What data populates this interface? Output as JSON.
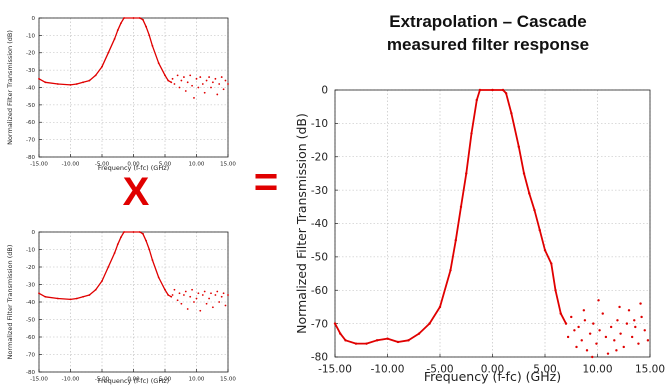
{
  "title_line1": "Extrapolation – Cascade",
  "title_line2": "measured filter response",
  "operator_multiply": "X",
  "operator_equals": "=",
  "colors": {
    "trace": "#e00000",
    "operator": "#e00000",
    "grid": "#b8b8b8"
  },
  "chart_data": [
    {
      "id": "top-left-input",
      "type": "scatter",
      "xlabel": "Frequency (f-fc) (GHz)",
      "ylabel": "Normalized Filter Transmission (dB)",
      "xlim": [
        -15,
        15
      ],
      "ylim": [
        -80,
        0
      ],
      "xticks": [
        "-15.00",
        "-10.00",
        "-5.00",
        "0.00",
        "5.00",
        "10.00",
        "15.00"
      ],
      "yticks": [
        "0",
        "-10",
        "-20",
        "-30",
        "-40",
        "-50",
        "-60",
        "-70",
        "-80"
      ],
      "grid": true,
      "series": [
        {
          "response_points": [
            [
              -15,
              -35
            ],
            [
              -14,
              -37
            ],
            [
              -12,
              -38
            ],
            [
              -10,
              -38.5
            ],
            [
              -9,
              -38
            ],
            [
              -8,
              -37
            ],
            [
              -7,
              -36
            ],
            [
              -6,
              -33
            ],
            [
              -5,
              -28
            ],
            [
              -4,
              -20
            ],
            [
              -3,
              -12
            ],
            [
              -2.5,
              -7
            ],
            [
              -2,
              -3
            ],
            [
              -1.5,
              0
            ],
            [
              0,
              0
            ],
            [
              1,
              0
            ],
            [
              1.5,
              -1
            ],
            [
              2,
              -5
            ],
            [
              2.5,
              -10
            ],
            [
              3,
              -16
            ],
            [
              4,
              -26
            ],
            [
              5,
              -33
            ],
            [
              5.5,
              -36
            ],
            [
              6,
              -37
            ]
          ],
          "noise_floor_points": [
            [
              6.2,
              -35
            ],
            [
              6.5,
              -38
            ],
            [
              7,
              -33
            ],
            [
              7.3,
              -40
            ],
            [
              7.6,
              -36
            ],
            [
              8,
              -34
            ],
            [
              8.3,
              -42
            ],
            [
              8.6,
              -37
            ],
            [
              9,
              -33
            ],
            [
              9.3,
              -39
            ],
            [
              9.6,
              -46
            ],
            [
              10,
              -35
            ],
            [
              10.3,
              -40
            ],
            [
              10.6,
              -34
            ],
            [
              11,
              -38
            ],
            [
              11.3,
              -43
            ],
            [
              11.6,
              -36
            ],
            [
              12,
              -34
            ],
            [
              12.3,
              -40
            ],
            [
              12.6,
              -37
            ],
            [
              13,
              -35
            ],
            [
              13.3,
              -44
            ],
            [
              13.6,
              -38
            ],
            [
              14,
              -34
            ],
            [
              14.3,
              -41
            ],
            [
              14.6,
              -36
            ],
            [
              15,
              -38
            ]
          ]
        }
      ]
    },
    {
      "id": "bottom-left-input",
      "type": "scatter",
      "xlabel": "Frequency (f-fc) (GHz)",
      "ylabel": "Normalized Filter Transmission (dB)",
      "xlim": [
        -15,
        15
      ],
      "ylim": [
        -80,
        0
      ],
      "xticks": [
        "-15.00",
        "-10.00",
        "-5.00",
        "0.00",
        "5.00",
        "10.00",
        "15.00"
      ],
      "yticks": [
        "0",
        "-10",
        "-20",
        "-30",
        "-40",
        "-50",
        "-60",
        "-70",
        "-80"
      ],
      "grid": true,
      "series": [
        {
          "response_points": [
            [
              -15,
              -35
            ],
            [
              -14,
              -37
            ],
            [
              -12,
              -38
            ],
            [
              -10,
              -38.5
            ],
            [
              -9,
              -38
            ],
            [
              -8,
              -37
            ],
            [
              -7,
              -36
            ],
            [
              -6,
              -33
            ],
            [
              -5,
              -28
            ],
            [
              -4,
              -20
            ],
            [
              -3,
              -12
            ],
            [
              -2.5,
              -7
            ],
            [
              -2,
              -3
            ],
            [
              -1.5,
              0
            ],
            [
              0,
              0
            ],
            [
              1,
              0
            ],
            [
              1.5,
              -1
            ],
            [
              2,
              -5
            ],
            [
              2.5,
              -10
            ],
            [
              3,
              -16
            ],
            [
              4,
              -26
            ],
            [
              5,
              -33
            ],
            [
              5.5,
              -36
            ],
            [
              6,
              -37
            ]
          ],
          "noise_floor_points": [
            [
              6.2,
              -36
            ],
            [
              6.5,
              -33
            ],
            [
              7,
              -39
            ],
            [
              7.3,
              -35
            ],
            [
              7.6,
              -41
            ],
            [
              8,
              -36
            ],
            [
              8.3,
              -34
            ],
            [
              8.6,
              -44
            ],
            [
              9,
              -37
            ],
            [
              9.3,
              -33
            ],
            [
              9.6,
              -40
            ],
            [
              10,
              -38
            ],
            [
              10.3,
              -35
            ],
            [
              10.6,
              -45
            ],
            [
              11,
              -36
            ],
            [
              11.3,
              -34
            ],
            [
              11.6,
              -41
            ],
            [
              12,
              -38
            ],
            [
              12.3,
              -35
            ],
            [
              12.6,
              -43
            ],
            [
              13,
              -36
            ],
            [
              13.3,
              -34
            ],
            [
              13.6,
              -40
            ],
            [
              14,
              -37
            ],
            [
              14.3,
              -35
            ],
            [
              14.6,
              -42
            ],
            [
              15,
              -36
            ]
          ]
        }
      ]
    },
    {
      "id": "main-cascade",
      "type": "scatter",
      "xlabel": "Frequency (f-fc) (GHz)",
      "ylabel": "Normalized Filter Transmission (dB)",
      "xlim": [
        -15,
        15
      ],
      "ylim": [
        -80,
        0
      ],
      "xticks": [
        "-15.00",
        "-10.00",
        "-5.00",
        "0.00",
        "5.00",
        "10.00",
        "15.00"
      ],
      "yticks": [
        "0",
        "-10",
        "-20",
        "-30",
        "-40",
        "-50",
        "-60",
        "-70",
        "-80"
      ],
      "grid": true,
      "series": [
        {
          "response_points": [
            [
              -15,
              -70
            ],
            [
              -14.5,
              -73
            ],
            [
              -14,
              -75
            ],
            [
              -13,
              -76
            ],
            [
              -12,
              -76
            ],
            [
              -11,
              -75
            ],
            [
              -10,
              -74.5
            ],
            [
              -9,
              -75.5
            ],
            [
              -8,
              -75
            ],
            [
              -7,
              -73
            ],
            [
              -6,
              -70
            ],
            [
              -5,
              -65
            ],
            [
              -4,
              -54
            ],
            [
              -3.5,
              -45
            ],
            [
              -3,
              -35
            ],
            [
              -2.5,
              -25
            ],
            [
              -2,
              -13
            ],
            [
              -1.5,
              -3
            ],
            [
              -1.2,
              0
            ],
            [
              0,
              0
            ],
            [
              1,
              0
            ],
            [
              1.3,
              -1
            ],
            [
              1.8,
              -7
            ],
            [
              2.5,
              -17
            ],
            [
              3,
              -25
            ],
            [
              3.5,
              -31
            ],
            [
              4,
              -36
            ],
            [
              4.5,
              -42
            ],
            [
              5,
              -48
            ],
            [
              5.6,
              -52
            ],
            [
              6,
              -60
            ],
            [
              6.5,
              -67
            ],
            [
              7,
              -70
            ]
          ],
          "noise_floor_points": [
            [
              7.2,
              -74
            ],
            [
              7.5,
              -68
            ],
            [
              7.8,
              -72
            ],
            [
              8,
              -77
            ],
            [
              8.2,
              -71
            ],
            [
              8.5,
              -75
            ],
            [
              8.8,
              -69
            ],
            [
              9,
              -78
            ],
            [
              9.3,
              -73
            ],
            [
              9.6,
              -70
            ],
            [
              9.9,
              -76
            ],
            [
              10.2,
              -72
            ],
            [
              10.5,
              -67
            ],
            [
              10.8,
              -74
            ],
            [
              11,
              -79
            ],
            [
              11.3,
              -71
            ],
            [
              11.6,
              -75
            ],
            [
              11.9,
              -69
            ],
            [
              12.2,
              -73
            ],
            [
              12.5,
              -77
            ],
            [
              12.8,
              -70
            ],
            [
              13,
              -66
            ],
            [
              13.3,
              -74
            ],
            [
              13.6,
              -71
            ],
            [
              13.9,
              -76
            ],
            [
              14.2,
              -68
            ],
            [
              14.5,
              -72
            ],
            [
              14.8,
              -75
            ],
            [
              12.1,
              -65
            ],
            [
              10.1,
              -63
            ],
            [
              8.7,
              -66
            ],
            [
              14.1,
              -64
            ],
            [
              9.5,
              -80
            ],
            [
              11.8,
              -78
            ],
            [
              13.5,
              -69
            ]
          ]
        }
      ]
    }
  ]
}
